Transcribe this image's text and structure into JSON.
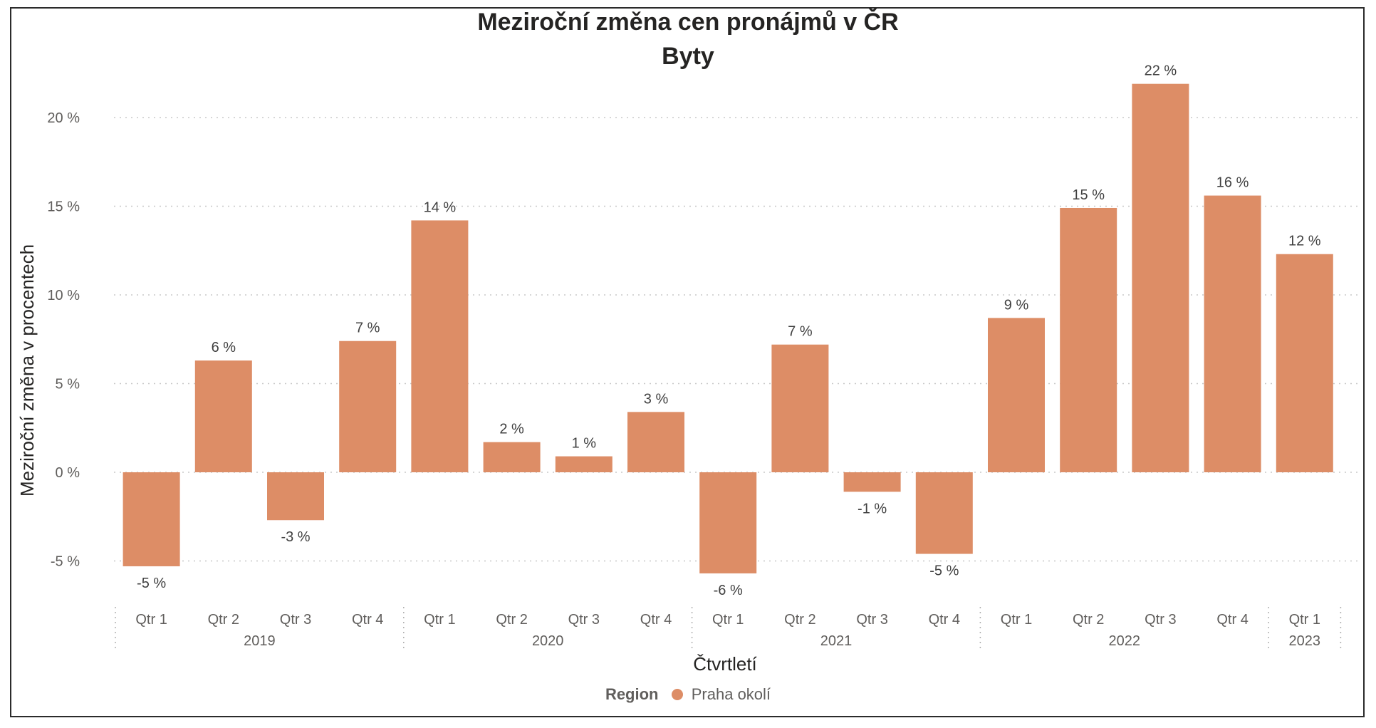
{
  "chart_data": {
    "type": "bar",
    "title": "Meziroční změna cen pronájmů v ČR",
    "subtitle": "Byty",
    "xlabel": "Čtvrtletí",
    "ylabel": "Meziroční změna v procentech",
    "ylim": [
      -7,
      23
    ],
    "yticks": [
      -5,
      0,
      5,
      10,
      15,
      20
    ],
    "ytick_labels": [
      "-5 %",
      "0 %",
      "5 %",
      "10 %",
      "15 %",
      "20 %"
    ],
    "grid": true,
    "categories": [
      "Qtr 1",
      "Qtr 2",
      "Qtr 3",
      "Qtr 4",
      "Qtr 1",
      "Qtr 2",
      "Qtr 3",
      "Qtr 4",
      "Qtr 1",
      "Qtr 2",
      "Qtr 3",
      "Qtr 4",
      "Qtr 1",
      "Qtr 2",
      "Qtr 3",
      "Qtr 4",
      "Qtr 1"
    ],
    "groups": [
      {
        "label": "2019",
        "count": 4
      },
      {
        "label": "2020",
        "count": 4
      },
      {
        "label": "2021",
        "count": 4
      },
      {
        "label": "2022",
        "count": 4
      },
      {
        "label": "2023",
        "count": 1
      }
    ],
    "series": [
      {
        "name": "Praha okolí",
        "color": "#dd8d66",
        "values": [
          -5.3,
          6.3,
          -2.7,
          7.4,
          14.2,
          1.7,
          0.9,
          3.4,
          -5.7,
          7.2,
          -1.1,
          -4.6,
          8.7,
          14.9,
          21.9,
          15.6,
          12.3
        ],
        "labels": [
          "-5 %",
          "6 %",
          "-3 %",
          "7 %",
          "14 %",
          "2 %",
          "1 %",
          "3 %",
          "-6 %",
          "7 %",
          "-1 %",
          "-5 %",
          "9 %",
          "15 %",
          "22 %",
          "16 %",
          "12 %"
        ]
      }
    ],
    "legend": {
      "title": "Region",
      "position": "bottom-center"
    }
  }
}
